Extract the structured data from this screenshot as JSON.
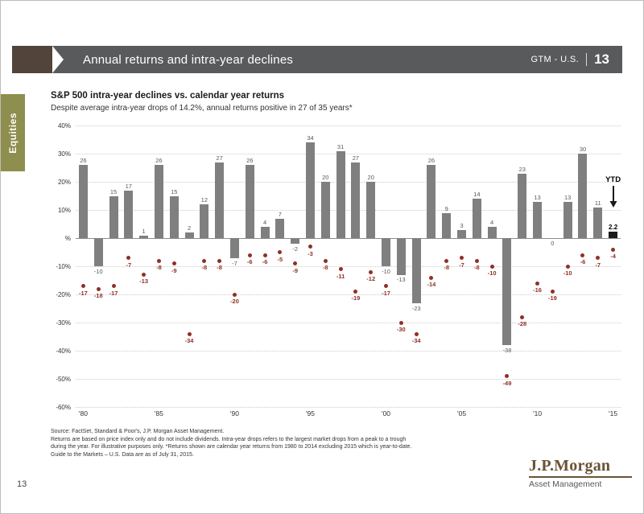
{
  "header": {
    "title": "Annual returns and intra-year declines",
    "gtm_label": "GTM - U.S.",
    "gtm_page": "13"
  },
  "sidebar": {
    "tab_label": "Equities"
  },
  "chart": {
    "title": "S&P 500 intra-year declines vs. calendar year returns",
    "subtitle": "Despite average intra-year drops of 14.2%, annual returns positive in 27 of 35 years*",
    "ytd_label": "YTD"
  },
  "chart_data": {
    "type": "bar",
    "title": "S&P 500 intra-year declines vs. calendar year returns",
    "x": [
      1980,
      1981,
      1982,
      1983,
      1984,
      1985,
      1986,
      1987,
      1988,
      1989,
      1990,
      1991,
      1992,
      1993,
      1994,
      1995,
      1996,
      1997,
      1998,
      1999,
      2000,
      2001,
      2002,
      2003,
      2004,
      2005,
      2006,
      2007,
      2008,
      2009,
      2010,
      2011,
      2012,
      2013,
      2014,
      2015
    ],
    "series": [
      {
        "name": "Calendar year return",
        "color": "#7f7f7f",
        "values": [
          26,
          -10,
          15,
          17,
          1,
          26,
          15,
          2,
          12,
          27,
          -7,
          26,
          4,
          7,
          -2,
          34,
          20,
          31,
          27,
          20,
          -10,
          -13,
          -23,
          26,
          9,
          3,
          14,
          4,
          -38,
          23,
          13,
          0,
          13,
          30,
          11,
          2.2
        ]
      },
      {
        "name": "Intra-year decline",
        "color": "#8f3026",
        "values": [
          -17,
          -18,
          -17,
          -7,
          -13,
          -8,
          -9,
          -34,
          -8,
          -8,
          -20,
          -6,
          -6,
          -5,
          -9,
          -3,
          -8,
          -11,
          -19,
          -12,
          -17,
          -30,
          -34,
          -14,
          -8,
          -7,
          -8,
          -10,
          -49,
          -28,
          -16,
          -19,
          -10,
          -6,
          -7,
          -4
        ]
      }
    ],
    "highlight_year": 2015,
    "highlight_color": "#1a1a1a",
    "ylim": [
      -60,
      40
    ],
    "yticks": [
      {
        "value": 40,
        "label": "40%"
      },
      {
        "value": 30,
        "label": "30%"
      },
      {
        "value": 20,
        "label": "20%"
      },
      {
        "value": 10,
        "label": "10%"
      },
      {
        "value": 0,
        "label": "%"
      },
      {
        "value": -10,
        "label": "-10%"
      },
      {
        "value": -20,
        "label": "-20%"
      },
      {
        "value": -30,
        "label": "-30%"
      },
      {
        "value": -40,
        "label": "-40%"
      },
      {
        "value": -50,
        "label": "-50%"
      },
      {
        "value": -60,
        "label": "-60%"
      }
    ],
    "xticks": [
      {
        "year": 1980,
        "label": "'80"
      },
      {
        "year": 1985,
        "label": "'85"
      },
      {
        "year": 1990,
        "label": "'90"
      },
      {
        "year": 1995,
        "label": "'95"
      },
      {
        "year": 2000,
        "label": "'00"
      },
      {
        "year": 2005,
        "label": "'05"
      },
      {
        "year": 2010,
        "label": "'10"
      },
      {
        "year": 2015,
        "label": "'15"
      }
    ],
    "grid": "dotted-horizontal",
    "legend": "none"
  },
  "footer": {
    "source_lines": [
      "Source: FactSet, Standard & Poor's, J.P. Morgan Asset Management.",
      "Returns are based on price index only and do not include dividends. Intra-year drops refers to the largest market drops from a peak to a trough",
      "during the year. For illustrative purposes only.  *Returns shown are calendar year returns from 1980 to 2014 excluding 2015 which is year-to-date.",
      "Guide to the Markets – U.S. Data are as of July 31, 2015."
    ],
    "logo_name": "J.P.Morgan",
    "logo_division": "Asset Management",
    "page_number": "13"
  },
  "colors": {
    "header_bar": "#595a5c",
    "header_accent": "#52443a",
    "equities_tab": "#8e8e4e",
    "bar": "#7f7f7f",
    "bar_ytd": "#1a1a1a",
    "decline_dot": "#8f3026",
    "logo_brown": "#6b5236"
  }
}
